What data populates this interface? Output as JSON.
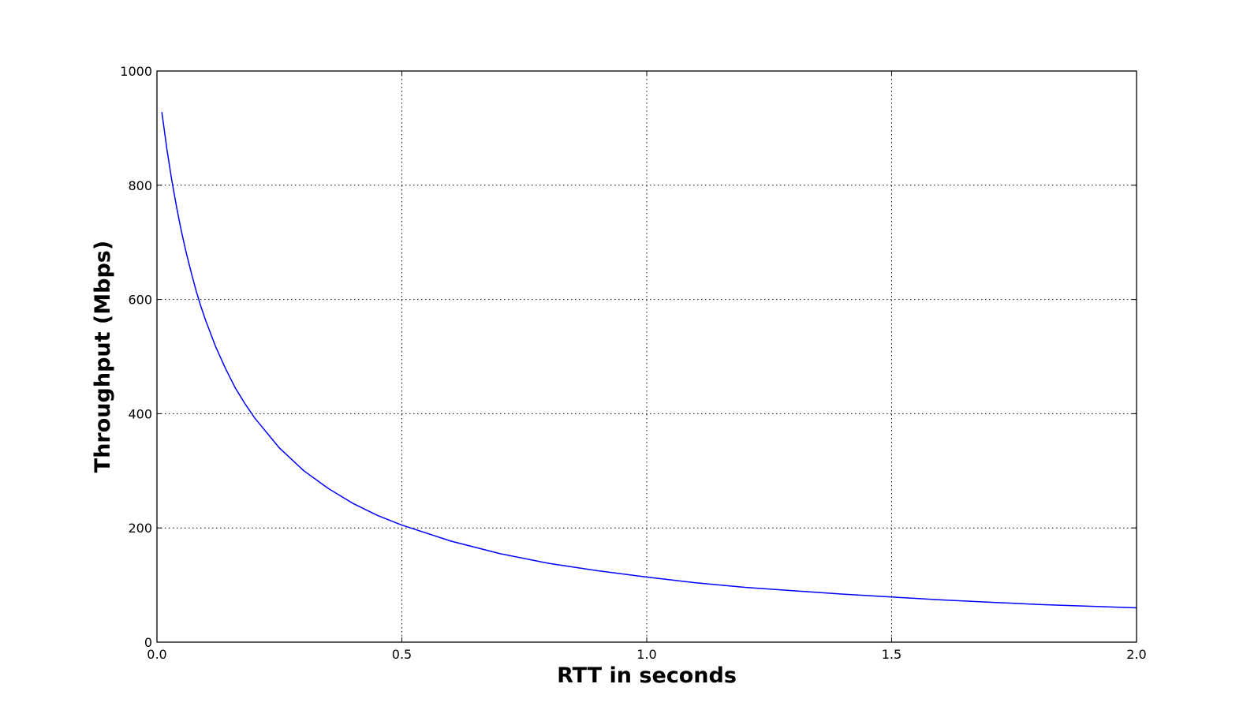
{
  "chart_data": {
    "type": "line",
    "title": "",
    "xlabel": "RTT in seconds",
    "ylabel": "Throughput (Mbps)",
    "xlim": [
      0.0,
      2.0
    ],
    "ylim": [
      0,
      1000
    ],
    "x_ticks": [
      0.0,
      0.5,
      1.0,
      1.5,
      2.0
    ],
    "x_tick_labels": [
      "0.0",
      "0.5",
      "1.0",
      "1.5",
      "2.0"
    ],
    "y_ticks": [
      0,
      200,
      400,
      600,
      800,
      1000
    ],
    "y_tick_labels": [
      "0",
      "200",
      "400",
      "600",
      "800",
      "1000"
    ],
    "grid": true,
    "grid_style": "dotted",
    "legend": "none",
    "series": [
      {
        "color": "#0000ff",
        "x": [
          0.01,
          0.02,
          0.03,
          0.04,
          0.05,
          0.06,
          0.07,
          0.08,
          0.09,
          0.1,
          0.12,
          0.14,
          0.16,
          0.18,
          0.2,
          0.25,
          0.3,
          0.35,
          0.4,
          0.45,
          0.5,
          0.6,
          0.7,
          0.8,
          0.9,
          1.0,
          1.1,
          1.2,
          1.3,
          1.4,
          1.5,
          1.6,
          1.7,
          1.8,
          1.9,
          2.0
        ],
        "y": [
          928,
          865,
          810,
          762,
          719,
          681,
          647,
          615,
          587,
          562,
          517,
          479,
          445,
          417,
          392,
          340,
          300,
          269,
          243,
          222,
          205,
          177,
          155,
          138,
          125,
          114,
          104,
          96,
          90,
          84,
          79,
          74,
          70,
          66,
          63,
          60
        ]
      }
    ]
  }
}
